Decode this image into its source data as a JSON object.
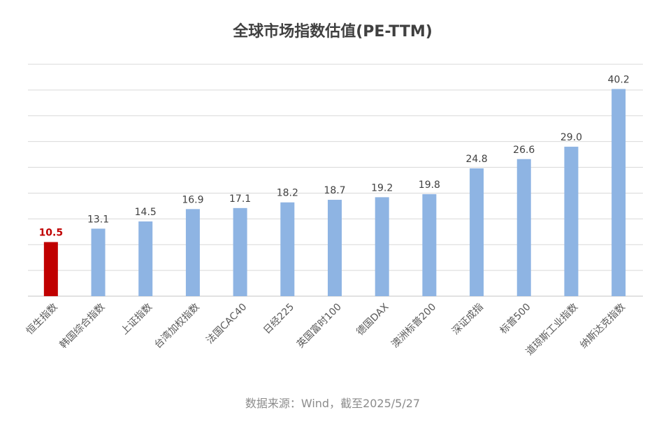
{
  "chart_data": {
    "type": "bar",
    "title": "全球市场指数估值(PE-TTM)",
    "categories": [
      "恒生指数",
      "韩国综合指数",
      "上证指数",
      "台湾加权指数",
      "法国CAC40",
      "日经225",
      "英国富时100",
      "德国DAX",
      "澳洲标普200",
      "深证成指",
      "标普500",
      "道琼斯工业指数",
      "纳斯达克指数"
    ],
    "values": [
      10.5,
      13.1,
      14.5,
      16.9,
      17.1,
      18.2,
      18.7,
      19.2,
      19.8,
      24.8,
      26.6,
      29.0,
      40.2
    ],
    "value_labels": [
      "10.5",
      "13.1",
      "14.5",
      "16.9",
      "17.1",
      "18.2",
      "18.7",
      "19.2",
      "19.8",
      "24.8",
      "26.6",
      "29.0",
      "40.2"
    ],
    "highlight_index": 0,
    "ylim": [
      0,
      45
    ],
    "grid_step": 5,
    "grid": true,
    "y_tick_labels_shown": false,
    "xlabel": "",
    "ylabel": "",
    "colors": {
      "bar": "#8eb4e3",
      "highlight": "#c00000",
      "highlight_label": "#c00000",
      "grid": "#d9d9d9"
    },
    "source": "数据来源：Wind，截至2025/5/27"
  }
}
